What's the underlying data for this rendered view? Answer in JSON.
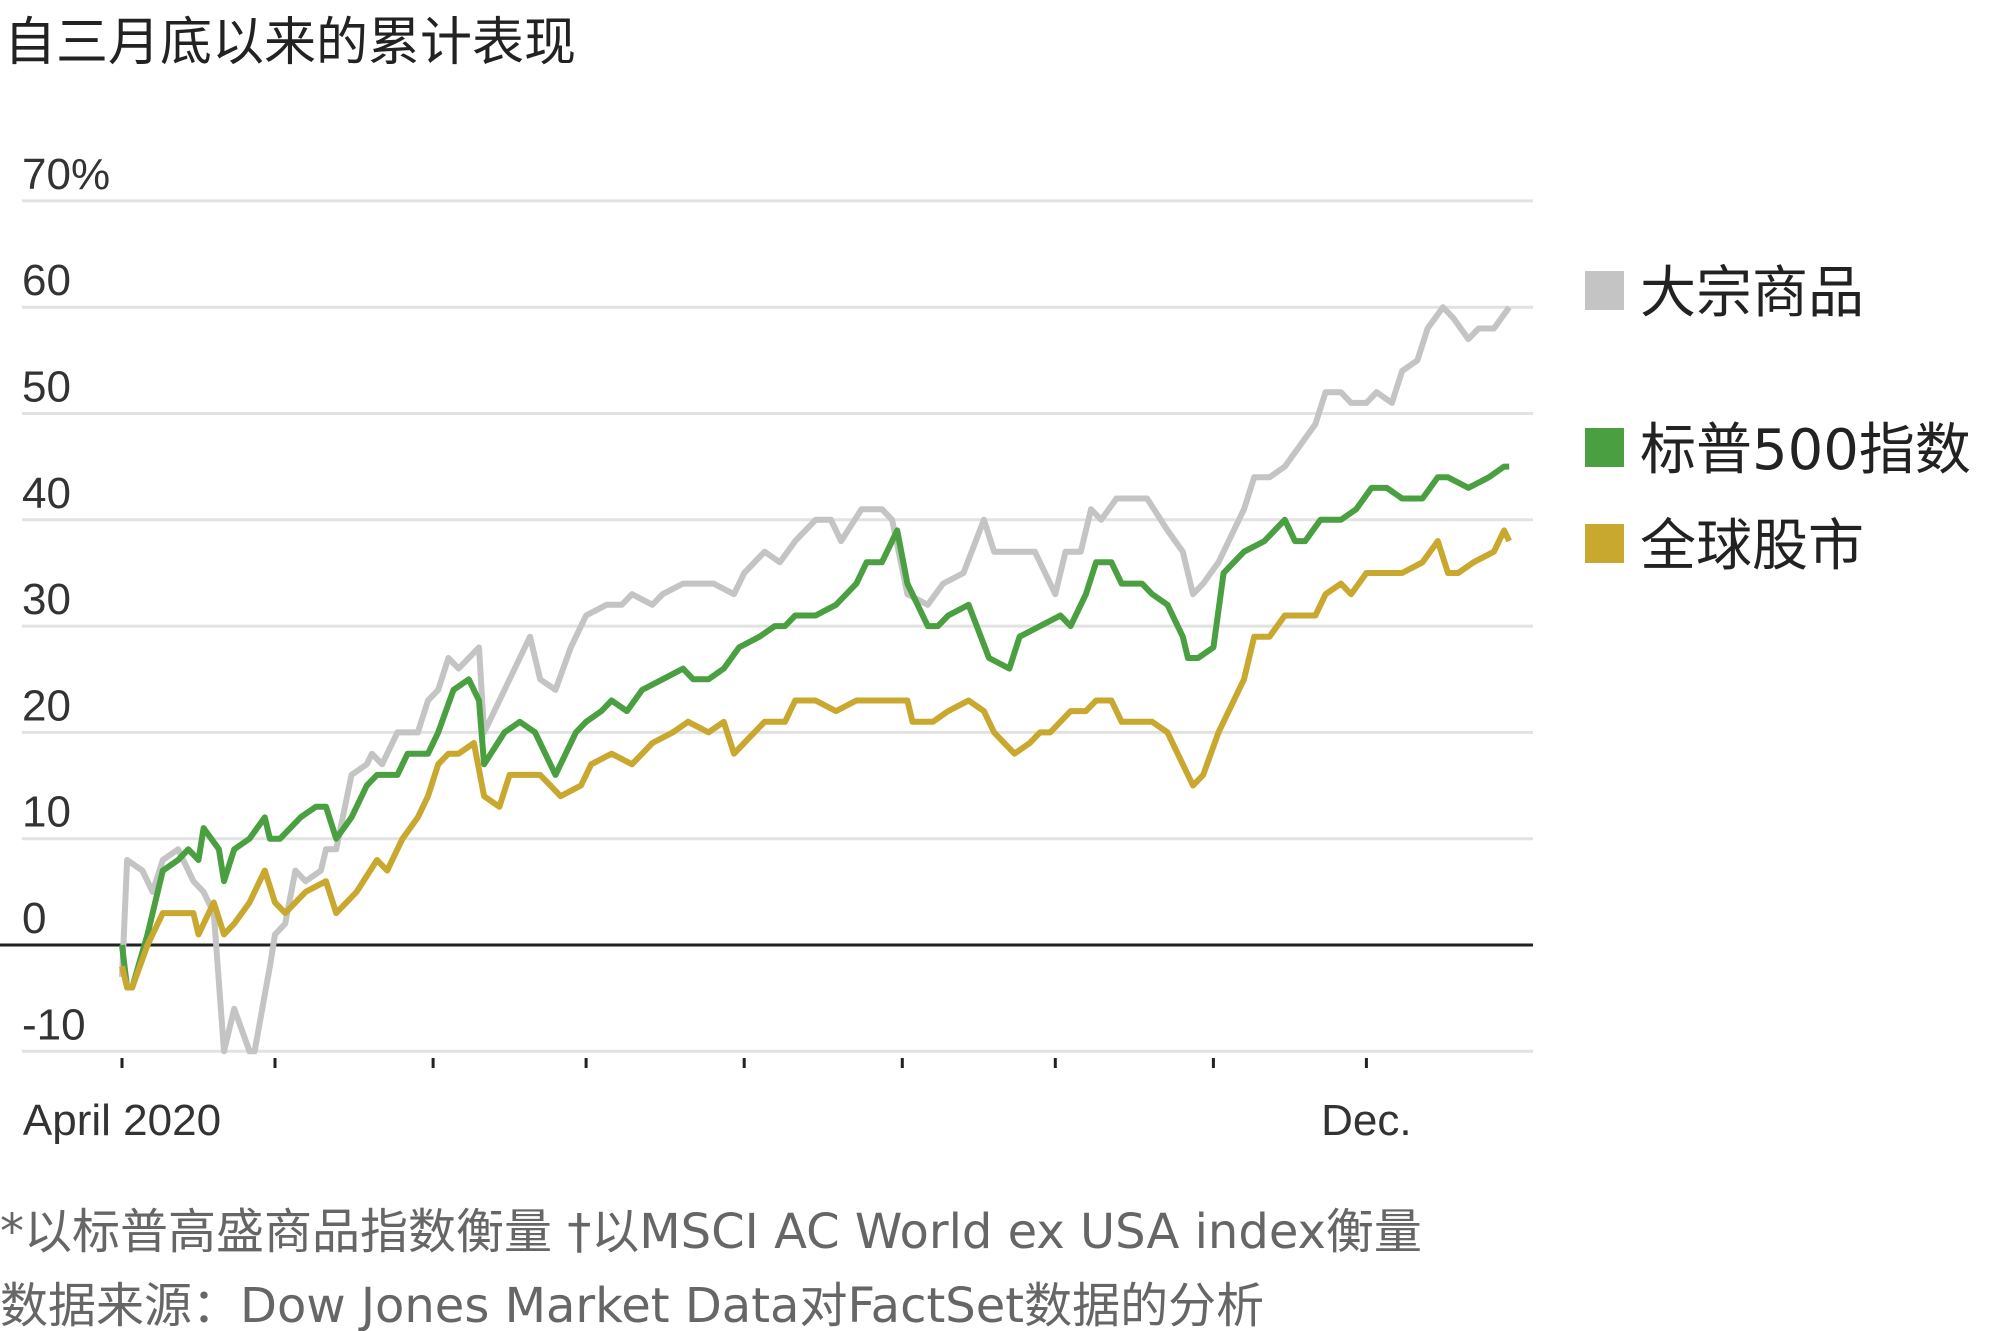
{
  "chart_data": {
    "type": "line",
    "title": "自三月底以来的累计表现",
    "xlabel": "",
    "ylabel": "",
    "x_unit": "days since April 1, 2020",
    "xlim": [
      0,
      275
    ],
    "ylim": [
      -10,
      70
    ],
    "yticks": [
      70,
      60,
      50,
      40,
      30,
      20,
      10,
      0,
      -10
    ],
    "ytick_labels": [
      "70%",
      "60",
      "50",
      "40",
      "30",
      "20",
      "10",
      "0",
      "-10"
    ],
    "xticks": [
      0,
      30,
      61,
      91,
      122,
      153,
      183,
      214,
      244
    ],
    "xtick_labels": [
      {
        "day": 0,
        "label": "April 2020"
      },
      {
        "day": 244,
        "label": "Dec."
      }
    ],
    "grid": true,
    "legend_position": "right",
    "series": [
      {
        "name": "大宗商品",
        "color": "#c4c4c4",
        "points": [
          [
            0,
            -3
          ],
          [
            1,
            8
          ],
          [
            4,
            7
          ],
          [
            6,
            5
          ],
          [
            8,
            8
          ],
          [
            11,
            9
          ],
          [
            14,
            6
          ],
          [
            16,
            5
          ],
          [
            18,
            3
          ],
          [
            20,
            -10
          ],
          [
            22,
            -6
          ],
          [
            25,
            -10
          ],
          [
            26,
            -10
          ],
          [
            29,
            -2
          ],
          [
            30,
            1
          ],
          [
            32,
            2
          ],
          [
            34,
            7
          ],
          [
            36,
            6
          ],
          [
            39,
            7
          ],
          [
            40,
            9
          ],
          [
            42,
            9
          ],
          [
            45,
            16
          ],
          [
            48,
            17
          ],
          [
            49,
            18
          ],
          [
            51,
            17
          ],
          [
            54,
            20
          ],
          [
            58,
            20
          ],
          [
            60,
            23
          ],
          [
            62,
            24
          ],
          [
            64,
            27
          ],
          [
            66,
            26
          ],
          [
            70,
            28
          ],
          [
            71,
            20
          ],
          [
            75,
            24
          ],
          [
            78,
            27
          ],
          [
            80,
            29
          ],
          [
            82,
            25
          ],
          [
            85,
            24
          ],
          [
            88,
            28
          ],
          [
            91,
            31
          ],
          [
            95,
            32
          ],
          [
            98,
            32
          ],
          [
            100,
            33
          ],
          [
            104,
            32
          ],
          [
            106,
            33
          ],
          [
            110,
            34
          ],
          [
            112,
            34
          ],
          [
            116,
            34
          ],
          [
            120,
            33
          ],
          [
            122,
            35
          ],
          [
            126,
            37
          ],
          [
            129,
            36
          ],
          [
            132,
            38
          ],
          [
            136,
            40
          ],
          [
            139,
            40
          ],
          [
            141,
            38
          ],
          [
            145,
            41
          ],
          [
            149,
            41
          ],
          [
            151,
            40
          ],
          [
            154,
            33
          ],
          [
            158,
            32
          ],
          [
            161,
            34
          ],
          [
            165,
            35
          ],
          [
            169,
            40
          ],
          [
            171,
            37
          ],
          [
            175,
            37
          ],
          [
            179,
            37
          ],
          [
            181,
            35
          ],
          [
            183,
            33
          ],
          [
            185,
            37
          ],
          [
            188,
            37
          ],
          [
            190,
            41
          ],
          [
            192,
            40
          ],
          [
            195,
            42
          ],
          [
            199,
            42
          ],
          [
            201,
            42
          ],
          [
            205,
            39
          ],
          [
            208,
            37
          ],
          [
            210,
            33
          ],
          [
            212,
            34
          ],
          [
            215,
            36
          ],
          [
            218,
            39
          ],
          [
            220,
            41
          ],
          [
            222,
            44
          ],
          [
            225,
            44
          ],
          [
            228,
            45
          ],
          [
            231,
            47
          ],
          [
            234,
            49
          ],
          [
            236,
            52
          ],
          [
            239,
            52
          ],
          [
            241,
            51
          ],
          [
            244,
            51
          ],
          [
            246,
            52
          ],
          [
            249,
            51
          ],
          [
            251,
            54
          ],
          [
            254,
            55
          ],
          [
            256,
            58
          ],
          [
            259,
            60
          ],
          [
            261,
            59
          ],
          [
            264,
            57
          ],
          [
            266,
            58
          ],
          [
            269,
            58
          ],
          [
            272,
            60
          ]
        ]
      },
      {
        "name": "标普500指数",
        "color": "#4aa041",
        "points": [
          [
            0,
            0
          ],
          [
            1,
            -4
          ],
          [
            2,
            -4
          ],
          [
            5,
            1
          ],
          [
            8,
            7
          ],
          [
            11,
            8
          ],
          [
            13,
            9
          ],
          [
            15,
            8
          ],
          [
            16,
            11
          ],
          [
            19,
            9
          ],
          [
            20,
            6
          ],
          [
            22,
            9
          ],
          [
            25,
            10
          ],
          [
            28,
            12
          ],
          [
            29,
            10
          ],
          [
            31,
            10
          ],
          [
            35,
            12
          ],
          [
            38,
            13
          ],
          [
            40,
            13
          ],
          [
            42,
            10
          ],
          [
            45,
            12
          ],
          [
            48,
            15
          ],
          [
            50,
            16
          ],
          [
            54,
            16
          ],
          [
            56,
            18
          ],
          [
            60,
            18
          ],
          [
            62,
            20
          ],
          [
            65,
            24
          ],
          [
            68,
            25
          ],
          [
            70,
            23
          ],
          [
            71,
            17
          ],
          [
            75,
            20
          ],
          [
            78,
            21
          ],
          [
            81,
            20
          ],
          [
            83,
            18
          ],
          [
            85,
            16
          ],
          [
            89,
            20
          ],
          [
            91,
            21
          ],
          [
            94,
            22
          ],
          [
            96,
            23
          ],
          [
            99,
            22
          ],
          [
            102,
            24
          ],
          [
            106,
            25
          ],
          [
            110,
            26
          ],
          [
            112,
            25
          ],
          [
            115,
            25
          ],
          [
            118,
            26
          ],
          [
            121,
            28
          ],
          [
            125,
            29
          ],
          [
            128,
            30
          ],
          [
            130,
            30
          ],
          [
            132,
            31
          ],
          [
            136,
            31
          ],
          [
            140,
            32
          ],
          [
            144,
            34
          ],
          [
            146,
            36
          ],
          [
            149,
            36
          ],
          [
            151,
            38
          ],
          [
            152,
            39
          ],
          [
            154,
            34
          ],
          [
            158,
            30
          ],
          [
            160,
            30
          ],
          [
            162,
            31
          ],
          [
            166,
            32
          ],
          [
            170,
            27
          ],
          [
            174,
            26
          ],
          [
            176,
            29
          ],
          [
            180,
            30
          ],
          [
            184,
            31
          ],
          [
            186,
            30
          ],
          [
            189,
            33
          ],
          [
            191,
            36
          ],
          [
            194,
            36
          ],
          [
            196,
            34
          ],
          [
            200,
            34
          ],
          [
            202,
            33
          ],
          [
            205,
            32
          ],
          [
            208,
            29
          ],
          [
            209,
            27
          ],
          [
            211,
            27
          ],
          [
            214,
            28
          ],
          [
            216,
            35
          ],
          [
            220,
            37
          ],
          [
            224,
            38
          ],
          [
            228,
            40
          ],
          [
            230,
            38
          ],
          [
            232,
            38
          ],
          [
            235,
            40
          ],
          [
            239,
            40
          ],
          [
            242,
            41
          ],
          [
            245,
            43
          ],
          [
            248,
            43
          ],
          [
            251,
            42
          ],
          [
            255,
            42
          ],
          [
            258,
            44
          ],
          [
            260,
            44
          ],
          [
            264,
            43
          ],
          [
            268,
            44
          ],
          [
            271,
            45
          ],
          [
            272,
            45
          ]
        ]
      },
      {
        "name": "全球股市",
        "color": "#c9a830",
        "points": [
          [
            0,
            -2
          ],
          [
            1,
            -4
          ],
          [
            2,
            -4
          ],
          [
            5,
            0
          ],
          [
            8,
            3
          ],
          [
            11,
            3
          ],
          [
            14,
            3
          ],
          [
            15,
            1
          ],
          [
            18,
            4
          ],
          [
            20,
            1
          ],
          [
            22,
            2
          ],
          [
            25,
            4
          ],
          [
            28,
            7
          ],
          [
            30,
            4
          ],
          [
            32,
            3
          ],
          [
            36,
            5
          ],
          [
            40,
            6
          ],
          [
            42,
            3
          ],
          [
            46,
            5
          ],
          [
            50,
            8
          ],
          [
            52,
            7
          ],
          [
            55,
            10
          ],
          [
            58,
            12
          ],
          [
            60,
            14
          ],
          [
            62,
            17
          ],
          [
            64,
            18
          ],
          [
            66,
            18
          ],
          [
            69,
            19
          ],
          [
            71,
            14
          ],
          [
            74,
            13
          ],
          [
            76,
            16
          ],
          [
            80,
            16
          ],
          [
            82,
            16
          ],
          [
            84,
            15
          ],
          [
            86,
            14
          ],
          [
            90,
            15
          ],
          [
            92,
            17
          ],
          [
            96,
            18
          ],
          [
            100,
            17
          ],
          [
            104,
            19
          ],
          [
            108,
            20
          ],
          [
            111,
            21
          ],
          [
            115,
            20
          ],
          [
            118,
            21
          ],
          [
            120,
            18
          ],
          [
            122,
            19
          ],
          [
            126,
            21
          ],
          [
            130,
            21
          ],
          [
            132,
            23
          ],
          [
            136,
            23
          ],
          [
            140,
            22
          ],
          [
            144,
            23
          ],
          [
            148,
            23
          ],
          [
            151,
            23
          ],
          [
            154,
            23
          ],
          [
            155,
            21
          ],
          [
            159,
            21
          ],
          [
            162,
            22
          ],
          [
            166,
            23
          ],
          [
            169,
            22
          ],
          [
            171,
            20
          ],
          [
            175,
            18
          ],
          [
            178,
            19
          ],
          [
            180,
            20
          ],
          [
            182,
            20
          ],
          [
            186,
            22
          ],
          [
            189,
            22
          ],
          [
            191,
            23
          ],
          [
            194,
            23
          ],
          [
            196,
            21
          ],
          [
            200,
            21
          ],
          [
            202,
            21
          ],
          [
            205,
            20
          ],
          [
            208,
            17
          ],
          [
            210,
            15
          ],
          [
            212,
            16
          ],
          [
            215,
            20
          ],
          [
            218,
            23
          ],
          [
            220,
            25
          ],
          [
            222,
            29
          ],
          [
            225,
            29
          ],
          [
            228,
            31
          ],
          [
            231,
            31
          ],
          [
            234,
            31
          ],
          [
            236,
            33
          ],
          [
            239,
            34
          ],
          [
            241,
            33
          ],
          [
            244,
            35
          ],
          [
            248,
            35
          ],
          [
            251,
            35
          ],
          [
            255,
            36
          ],
          [
            258,
            38
          ],
          [
            260,
            35
          ],
          [
            262,
            35
          ],
          [
            265,
            36
          ],
          [
            269,
            37
          ],
          [
            271,
            39
          ],
          [
            272,
            38
          ]
        ]
      }
    ],
    "footnotes": [
      "*以标普高盛商品指数衡量 †以MSCI AC World ex USA index衡量",
      "数据来源：Dow Jones Market Data对FactSet数据的分析"
    ]
  }
}
